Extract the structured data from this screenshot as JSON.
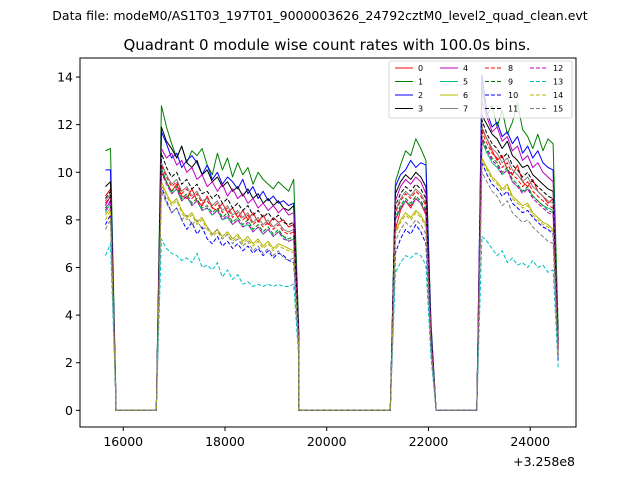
{
  "figure": {
    "suptitle": "Data file: modeM0/AS1T03_197T01_9000003626_24792cztM0_level2_quad_clean.evt"
  },
  "chart_data": {
    "type": "line",
    "title": "Quadrant 0 module wise count rates with 100.0s bins.",
    "xlabel": "",
    "ylabel": "",
    "offset_text": "+3.258e8",
    "xlim": [
      15150,
      24900
    ],
    "ylim": [
      -0.7,
      14.8
    ],
    "xticks": [
      16000,
      18000,
      20000,
      22000,
      24000
    ],
    "xtick_labels": [
      "16000",
      "18000",
      "20000",
      "22000",
      "24000"
    ],
    "yticks": [
      0,
      2,
      4,
      6,
      8,
      10,
      12,
      14
    ],
    "ytick_labels": [
      "0",
      "2",
      "4",
      "6",
      "8",
      "10",
      "12",
      "14"
    ],
    "legend_position": "upper right",
    "segments": [
      {
        "start": 15650,
        "n": 2
      },
      {
        "start": 16750,
        "n": 27
      },
      {
        "start": 21350,
        "n": 7
      },
      {
        "start": 23050,
        "n": 15
      }
    ],
    "gaps": [
      [
        15850,
        16650
      ],
      [
        19450,
        21250
      ],
      [
        22150,
        22950
      ]
    ],
    "series": [
      {
        "name": "0",
        "color": "#ff0000",
        "dash": "solid",
        "seg_values": [
          [
            9.0,
            9.3,
            0.9
          ],
          [
            10.0,
            9.6,
            9.2,
            9.5,
            9.0,
            8.9,
            9.3,
            8.8,
            8.6,
            9.0,
            8.5,
            8.4,
            8.7,
            8.3,
            8.5,
            8.1,
            8.4,
            8.0,
            8.3,
            7.9,
            8.2,
            7.8,
            8.1,
            7.9,
            8.0,
            7.7,
            7.8,
            3.2
          ],
          [
            7.6,
            8.4,
            8.8,
            8.5,
            8.9,
            8.7,
            8.2,
            3.0
          ],
          [
            11.8,
            11.4,
            10.9,
            10.5,
            10.7,
            10.1,
            9.9,
            10.3,
            9.6,
            9.4,
            9.7,
            9.2,
            9.0,
            8.7,
            8.9,
            2.7
          ]
        ]
      },
      {
        "name": "1",
        "color": "#008000",
        "dash": "solid",
        "seg_values": [
          [
            10.9,
            11.0,
            1.2
          ],
          [
            12.8,
            11.9,
            11.2,
            10.6,
            11.1,
            10.4,
            10.9,
            10.7,
            11.0,
            10.3,
            9.9,
            10.8,
            10.1,
            10.6,
            9.8,
            10.4,
            9.9,
            10.2,
            9.5,
            10.0,
            9.7,
            9.5,
            9.3,
            9.6,
            9.4,
            9.2,
            9.7,
            3.5
          ],
          [
            9.6,
            10.3,
            10.9,
            10.7,
            11.4,
            11.0,
            10.5,
            3.7
          ],
          [
            13.6,
            12.4,
            12.8,
            11.9,
            12.6,
            11.6,
            12.1,
            12.9,
            11.8,
            11.5,
            11.0,
            11.6,
            10.9,
            11.4,
            11.2,
            3.4
          ]
        ]
      },
      {
        "name": "2",
        "color": "#0000ff",
        "dash": "solid",
        "seg_values": [
          [
            10.1,
            10.1,
            1.1
          ],
          [
            11.7,
            11.2,
            10.6,
            10.8,
            10.2,
            10.5,
            10.7,
            10.4,
            9.9,
            10.3,
            9.7,
            10.0,
            9.5,
            9.8,
            9.6,
            9.3,
            9.7,
            9.1,
            9.4,
            8.9,
            9.2,
            8.8,
            9.0,
            8.7,
            8.8,
            8.6,
            8.7,
            3.3
          ],
          [
            9.4,
            9.9,
            10.1,
            10.5,
            10.2,
            10.4,
            10.3,
            3.5
          ],
          [
            14.1,
            12.5,
            11.9,
            12.1,
            11.5,
            11.7,
            11.2,
            11.5,
            10.8,
            11.1,
            10.6,
            10.9,
            10.4,
            10.2,
            10.1,
            2.1
          ]
        ]
      },
      {
        "name": "3",
        "color": "#000000",
        "dash": "solid",
        "seg_values": [
          [
            9.4,
            9.6,
            1.0
          ],
          [
            11.9,
            11.3,
            11.0,
            10.6,
            11.1,
            10.4,
            10.2,
            10.5,
            9.9,
            10.1,
            9.6,
            9.8,
            9.4,
            9.6,
            9.2,
            9.4,
            9.0,
            9.3,
            8.9,
            9.1,
            8.7,
            8.9,
            8.6,
            8.8,
            8.5,
            8.4,
            8.6,
            3.2
          ],
          [
            9.1,
            9.6,
            9.9,
            9.7,
            10.0,
            9.8,
            9.4,
            3.3
          ],
          [
            12.4,
            12.0,
            11.6,
            11.4,
            11.0,
            11.3,
            10.7,
            10.5,
            10.2,
            10.3,
            9.9,
            9.7,
            9.5,
            9.3,
            9.2,
            3.0
          ]
        ]
      },
      {
        "name": "4",
        "color": "#c000c0",
        "dash": "solid",
        "seg_values": [
          [
            8.6,
            9.0,
            0.9
          ],
          [
            11.0,
            10.6,
            10.8,
            10.3,
            10.5,
            10.0,
            10.2,
            9.7,
            9.9,
            9.4,
            9.6,
            9.2,
            9.5,
            9.0,
            9.3,
            8.9,
            9.1,
            8.7,
            8.9,
            8.5,
            8.7,
            8.4,
            8.6,
            8.3,
            8.5,
            8.2,
            8.3,
            3.1
          ],
          [
            8.8,
            9.4,
            9.7,
            9.5,
            9.8,
            9.6,
            9.1,
            3.2
          ],
          [
            13.0,
            12.3,
            11.7,
            11.9,
            11.3,
            11.5,
            10.9,
            11.1,
            10.5,
            10.7,
            10.2,
            10.4,
            10.0,
            9.8,
            9.6,
            2.8
          ]
        ]
      },
      {
        "name": "5",
        "color": "#00c080",
        "dash": "solid",
        "seg_values": [
          [
            8.3,
            8.7,
            0.8
          ],
          [
            10.2,
            9.6,
            9.1,
            9.3,
            8.8,
            9.0,
            8.6,
            8.8,
            8.4,
            8.5,
            8.2,
            8.4,
            8.0,
            8.1,
            7.8,
            8.0,
            7.7,
            7.8,
            7.5,
            7.7,
            7.4,
            7.6,
            7.3,
            7.5,
            7.3,
            7.1,
            7.2,
            2.9
          ],
          [
            8.0,
            8.5,
            8.8,
            8.6,
            8.9,
            8.7,
            8.3,
            3.0
          ],
          [
            11.3,
            10.8,
            10.4,
            10.2,
            9.9,
            10.1,
            9.6,
            9.4,
            9.2,
            9.3,
            9.0,
            8.8,
            8.6,
            8.5,
            8.4,
            2.6
          ]
        ]
      },
      {
        "name": "6",
        "color": "#b5b500",
        "dash": "solid",
        "seg_values": [
          [
            8.2,
            8.5,
            0.8
          ],
          [
            9.6,
            9.1,
            8.7,
            8.9,
            8.4,
            8.1,
            8.3,
            7.9,
            8.1,
            7.7,
            7.4,
            7.6,
            7.3,
            7.5,
            7.2,
            7.4,
            7.1,
            7.3,
            7.0,
            7.2,
            6.9,
            7.1,
            6.8,
            7.0,
            6.9,
            6.8,
            6.7,
            2.7
          ],
          [
            7.5,
            8.0,
            8.3,
            8.1,
            8.4,
            8.2,
            7.8,
            2.8
          ],
          [
            10.6,
            10.2,
            9.8,
            9.6,
            9.3,
            9.5,
            9.0,
            8.8,
            8.6,
            8.7,
            8.3,
            8.1,
            7.9,
            7.8,
            7.6,
            2.4
          ]
        ]
      },
      {
        "name": "7",
        "color": "#808080",
        "dash": "solid",
        "seg_values": [
          [
            8.8,
            9.1,
            0.9
          ],
          [
            10.4,
            9.9,
            9.5,
            9.7,
            9.2,
            9.4,
            9.0,
            9.2,
            8.8,
            8.9,
            8.6,
            8.8,
            8.4,
            8.6,
            8.2,
            8.4,
            8.1,
            8.3,
            7.9,
            8.1,
            7.8,
            8.0,
            7.7,
            7.9,
            7.6,
            7.5,
            7.6,
            3.0
          ],
          [
            8.4,
            8.9,
            9.2,
            9.0,
            9.3,
            9.1,
            8.7,
            3.1
          ],
          [
            11.9,
            11.4,
            11.0,
            10.8,
            10.4,
            10.6,
            10.1,
            9.9,
            9.6,
            9.8,
            9.4,
            9.2,
            9.0,
            8.8,
            8.7,
            2.7
          ]
        ]
      },
      {
        "name": "8",
        "color": "#ff0000",
        "dash": "dashed",
        "seg_values": [
          [
            8.7,
            9.0,
            0.9
          ],
          [
            10.3,
            9.8,
            9.4,
            9.6,
            9.1,
            9.3,
            8.9,
            9.1,
            8.7,
            8.8,
            8.5,
            8.7,
            8.3,
            8.5,
            8.1,
            8.3,
            8.0,
            8.2,
            7.8,
            8.0,
            7.7,
            7.9,
            7.6,
            7.8,
            7.5,
            7.4,
            7.5,
            3.0
          ],
          [
            8.3,
            8.8,
            9.1,
            8.9,
            9.2,
            9.0,
            8.6,
            3.0
          ],
          [
            11.7,
            11.2,
            10.8,
            10.6,
            10.2,
            10.4,
            9.9,
            9.7,
            9.4,
            9.6,
            9.2,
            9.0,
            8.8,
            8.6,
            8.5,
            2.6
          ]
        ]
      },
      {
        "name": "9",
        "color": "#008000",
        "dash": "dashed",
        "seg_values": [
          [
            8.5,
            8.8,
            0.9
          ],
          [
            10.1,
            9.6,
            9.2,
            9.4,
            8.9,
            9.1,
            8.7,
            8.9,
            8.5,
            8.6,
            8.3,
            8.5,
            8.1,
            8.3,
            7.9,
            8.1,
            7.8,
            8.0,
            7.6,
            7.8,
            7.5,
            7.7,
            7.4,
            7.6,
            7.3,
            7.2,
            7.3,
            2.9
          ],
          [
            8.1,
            8.6,
            8.9,
            8.7,
            9.0,
            8.8,
            8.4,
            2.9
          ],
          [
            11.5,
            11.0,
            10.6,
            10.4,
            10.0,
            10.2,
            9.7,
            9.5,
            9.2,
            9.4,
            9.0,
            8.8,
            8.6,
            8.4,
            8.3,
            2.5
          ]
        ]
      },
      {
        "name": "10",
        "color": "#0000ff",
        "dash": "dashed",
        "seg_values": [
          [
            7.8,
            8.2,
            0.8
          ],
          [
            9.4,
            8.8,
            8.3,
            8.5,
            8.0,
            7.6,
            7.9,
            7.4,
            7.7,
            7.2,
            7.0,
            7.3,
            6.9,
            7.1,
            6.8,
            7.0,
            6.7,
            6.9,
            6.6,
            6.8,
            6.5,
            6.7,
            6.4,
            6.6,
            6.5,
            6.3,
            6.2,
            2.6
          ],
          [
            6.6,
            7.2,
            7.6,
            7.4,
            7.8,
            7.5,
            7.0,
            2.6
          ],
          [
            10.4,
            9.9,
            9.5,
            9.3,
            9.0,
            9.2,
            8.7,
            8.5,
            8.3,
            8.4,
            8.1,
            7.9,
            7.7,
            7.6,
            7.4,
            2.3
          ]
        ]
      },
      {
        "name": "11",
        "color": "#000000",
        "dash": "dashed",
        "seg_values": [
          [
            8.9,
            9.2,
            0.9
          ],
          [
            10.8,
            10.2,
            9.8,
            10.0,
            9.5,
            9.7,
            9.3,
            9.5,
            9.1,
            9.2,
            8.9,
            9.1,
            8.7,
            8.9,
            8.5,
            8.7,
            8.4,
            8.6,
            8.2,
            8.4,
            8.1,
            8.3,
            8.0,
            8.2,
            7.9,
            7.8,
            7.9,
            3.1
          ],
          [
            8.6,
            9.1,
            9.4,
            9.2,
            9.5,
            9.3,
            8.9,
            3.1
          ],
          [
            12.2,
            11.6,
            11.2,
            11.0,
            10.6,
            10.8,
            10.3,
            10.1,
            9.8,
            10.0,
            9.6,
            9.4,
            9.2,
            9.0,
            8.9,
            2.8
          ]
        ]
      },
      {
        "name": "12",
        "color": "#c000c0",
        "dash": "dashed",
        "seg_values": [
          [
            8.4,
            8.8,
            0.9
          ],
          [
            10.0,
            9.5,
            9.1,
            9.3,
            8.8,
            9.0,
            8.6,
            8.8,
            8.4,
            8.5,
            8.2,
            8.4,
            8.0,
            8.2,
            7.8,
            8.0,
            7.7,
            7.9,
            7.5,
            7.7,
            7.4,
            7.6,
            7.3,
            7.5,
            7.2,
            7.1,
            7.2,
            2.9
          ],
          [
            8.0,
            8.5,
            8.8,
            8.6,
            8.9,
            8.7,
            8.3,
            2.9
          ],
          [
            11.4,
            10.9,
            10.5,
            10.3,
            9.9,
            10.1,
            9.6,
            9.4,
            9.1,
            9.3,
            8.9,
            8.7,
            8.5,
            8.3,
            8.2,
            2.5
          ]
        ]
      },
      {
        "name": "13",
        "color": "#00c0c0",
        "dash": "dashed",
        "seg_values": [
          [
            6.5,
            7.0,
            0.7
          ],
          [
            7.2,
            6.8,
            6.6,
            6.5,
            6.3,
            6.4,
            6.2,
            6.6,
            6.0,
            6.1,
            5.9,
            6.2,
            5.6,
            5.9,
            5.5,
            5.7,
            5.3,
            5.4,
            5.2,
            5.3,
            5.2,
            5.3,
            5.2,
            5.3,
            5.2,
            5.2,
            5.3,
            2.2
          ],
          [
            5.8,
            6.2,
            6.5,
            6.4,
            6.6,
            6.5,
            6.1,
            2.2
          ],
          [
            7.3,
            7.1,
            6.8,
            6.5,
            6.7,
            6.2,
            6.4,
            6.1,
            6.2,
            6.0,
            6.3,
            6.0,
            6.1,
            5.8,
            5.9,
            1.8
          ]
        ]
      },
      {
        "name": "14",
        "color": "#b5b500",
        "dash": "dashed",
        "seg_values": [
          [
            8.0,
            8.4,
            0.8
          ],
          [
            9.5,
            9.0,
            8.6,
            8.8,
            8.3,
            8.0,
            8.2,
            7.8,
            8.0,
            7.6,
            7.3,
            7.5,
            7.2,
            7.4,
            7.1,
            7.3,
            7.0,
            7.2,
            6.9,
            7.1,
            6.8,
            7.0,
            6.7,
            6.9,
            6.8,
            6.7,
            6.6,
            2.7
          ],
          [
            7.4,
            7.9,
            8.2,
            8.0,
            8.3,
            8.1,
            7.7,
            2.7
          ],
          [
            10.5,
            10.1,
            9.7,
            9.5,
            9.2,
            9.4,
            8.9,
            8.7,
            8.5,
            8.6,
            8.2,
            8.0,
            7.8,
            7.7,
            7.5,
            2.3
          ]
        ]
      },
      {
        "name": "15",
        "color": "#808080",
        "dash": "dashed",
        "seg_values": [
          [
            7.6,
            8.0,
            0.8
          ],
          [
            9.2,
            8.7,
            8.3,
            8.5,
            8.0,
            8.2,
            7.8,
            8.0,
            7.6,
            7.7,
            7.4,
            7.6,
            7.2,
            7.4,
            7.0,
            7.2,
            6.9,
            7.1,
            6.7,
            6.9,
            6.6,
            6.8,
            6.5,
            6.7,
            6.4,
            6.3,
            6.4,
            2.6
          ],
          [
            7.1,
            7.6,
            7.9,
            7.7,
            8.0,
            7.8,
            7.4,
            2.6
          ],
          [
            10.0,
            9.6,
            9.2,
            9.0,
            8.6,
            8.8,
            8.3,
            8.1,
            7.9,
            8.0,
            7.7,
            7.5,
            7.3,
            7.1,
            7.0,
            2.2
          ]
        ]
      }
    ]
  }
}
